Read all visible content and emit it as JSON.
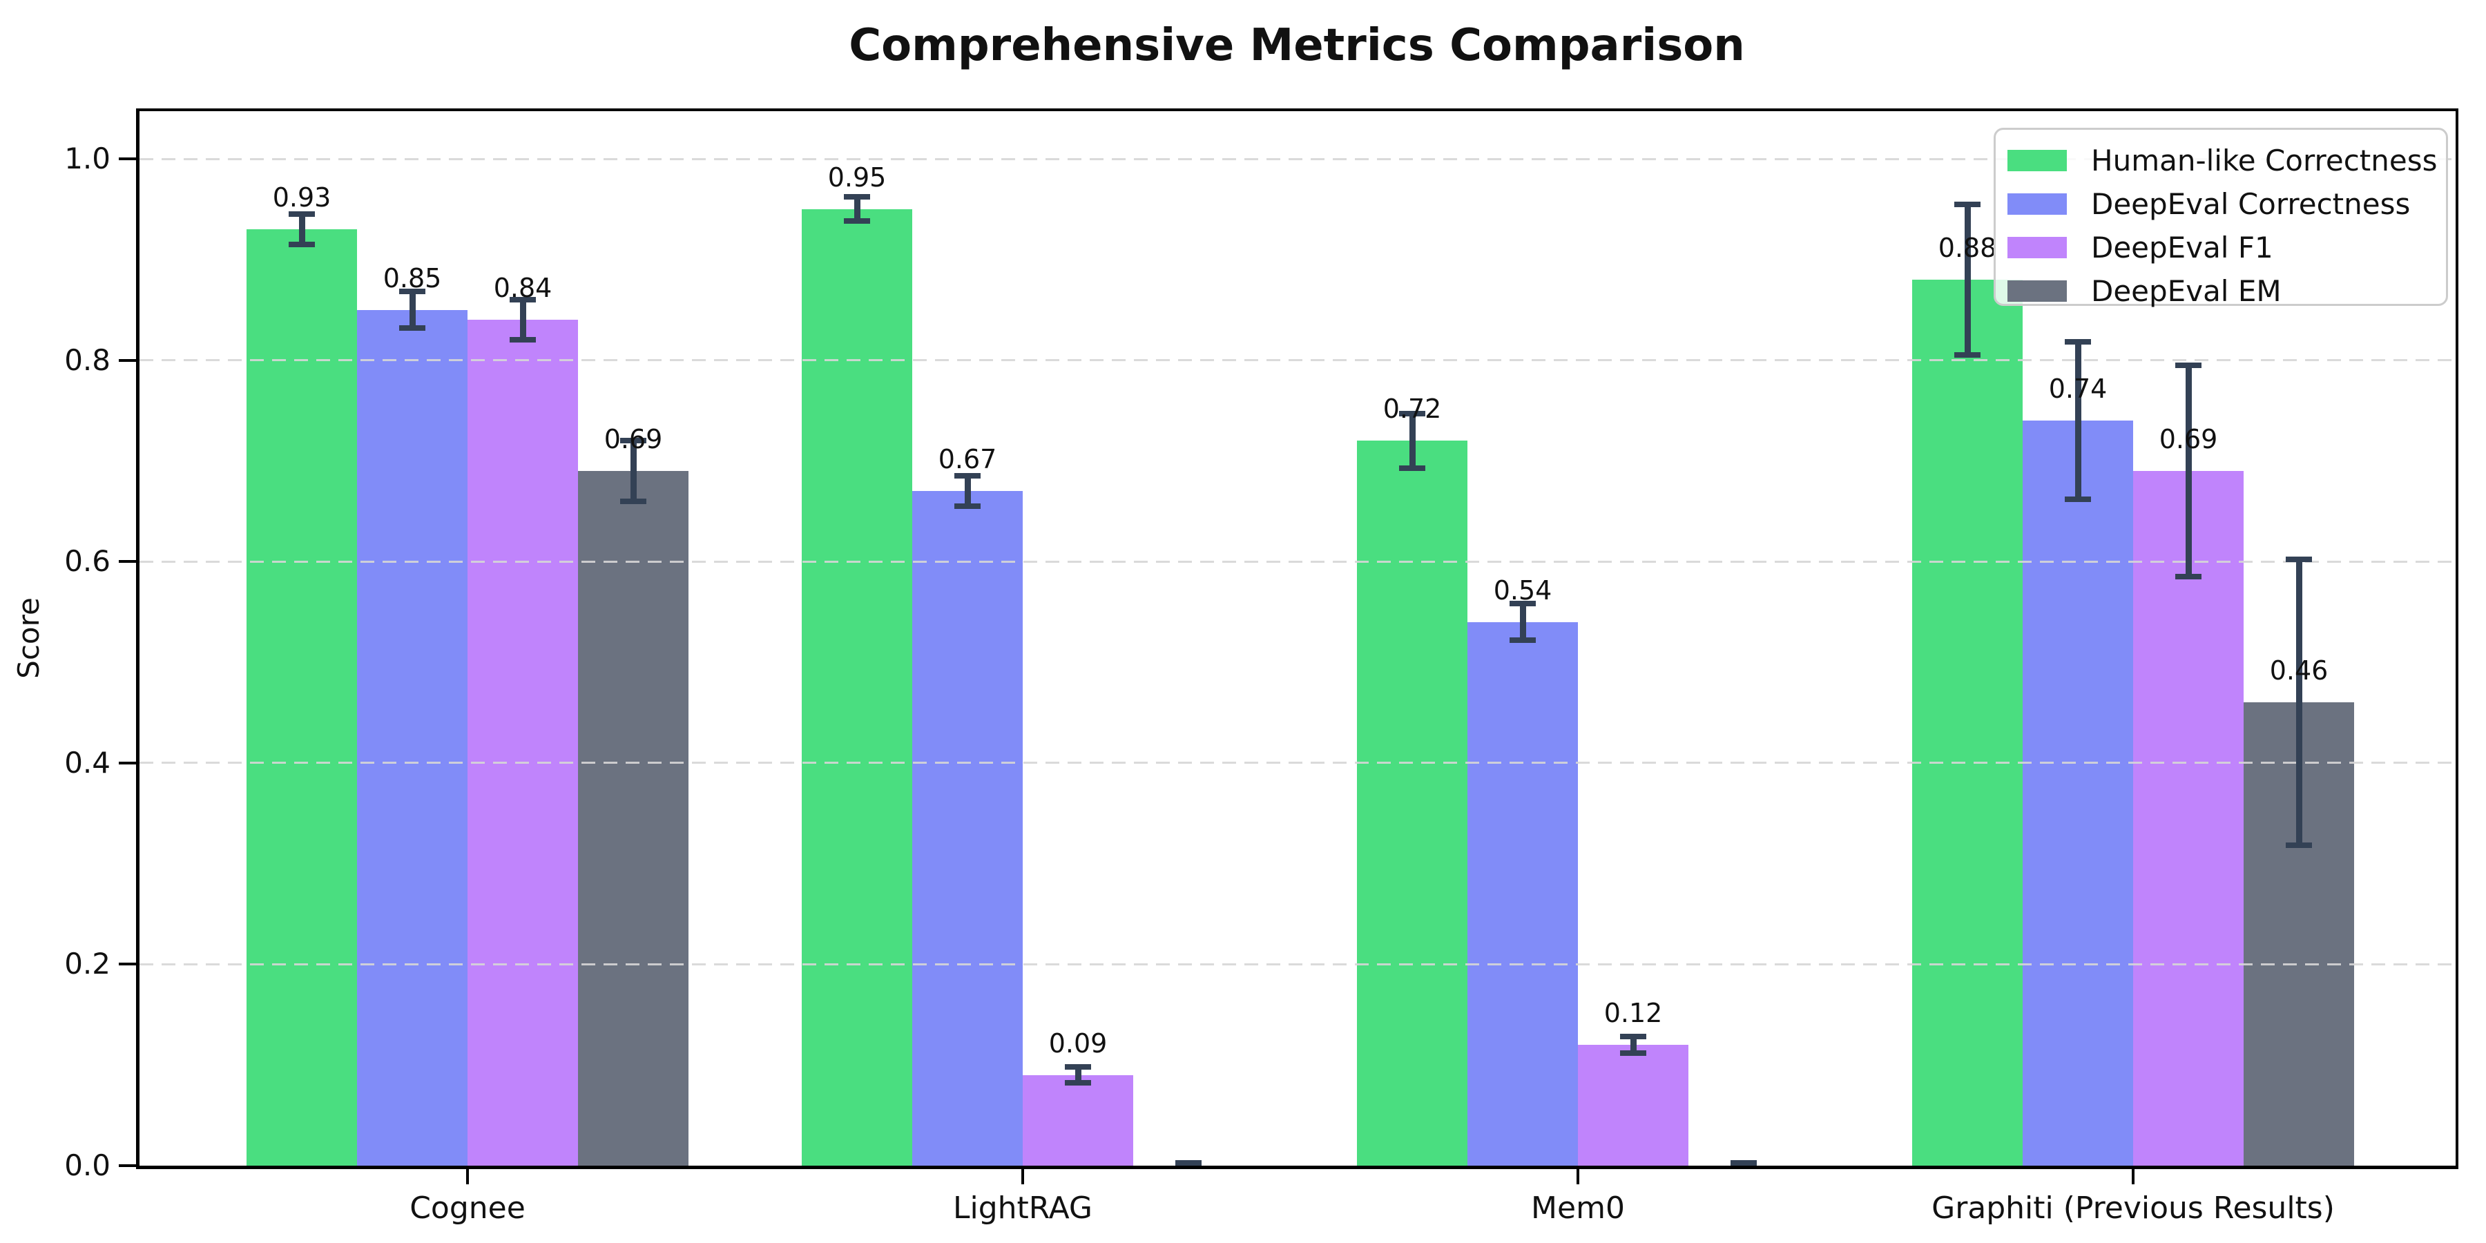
{
  "title": "Comprehensive Metrics Comparison",
  "chart_data": {
    "type": "bar",
    "title": "Comprehensive Metrics Comparison",
    "xlabel": "",
    "ylabel": "Score",
    "ylim": [
      0,
      1.05
    ],
    "yticks": [
      "0.0",
      "0.2",
      "0.4",
      "0.6",
      "0.8",
      "1.0"
    ],
    "grid": "horizontal-dashed",
    "legend_position": "upper-right",
    "background_color": "#ffffff",
    "error_bar_color": "#334155",
    "categories": [
      "Cognee",
      "LightRAG",
      "Mem0",
      "Graphiti (Previous Results)"
    ],
    "series": [
      {
        "name": "Human-like Correctness",
        "color": "#4ade80",
        "values": [
          0.93,
          0.95,
          0.72,
          0.88
        ],
        "errors": [
          0.015,
          0.012,
          0.027,
          0.075
        ],
        "labels": [
          "0.93",
          "0.95",
          "0.72",
          "0.88"
        ]
      },
      {
        "name": "DeepEval Correctness",
        "color": "#818cf8",
        "values": [
          0.85,
          0.67,
          0.54,
          0.74
        ],
        "errors": [
          0.018,
          0.015,
          0.018,
          0.078
        ],
        "labels": [
          "0.85",
          "0.67",
          "0.54",
          "0.74"
        ]
      },
      {
        "name": "DeepEval F1",
        "color": "#c084fc",
        "values": [
          0.84,
          0.09,
          0.12,
          0.69
        ],
        "errors": [
          0.02,
          0.008,
          0.008,
          0.105
        ],
        "labels": [
          "0.84",
          "0.09",
          "0.12",
          "0.69"
        ]
      },
      {
        "name": "DeepEval EM",
        "color": "#6b7280",
        "values": [
          0.69,
          0.0,
          0.0,
          0.46
        ],
        "errors": [
          0.03,
          0.003,
          0.003,
          0.142
        ],
        "labels": [
          "0.69",
          "",
          "",
          "0.46"
        ]
      }
    ]
  }
}
